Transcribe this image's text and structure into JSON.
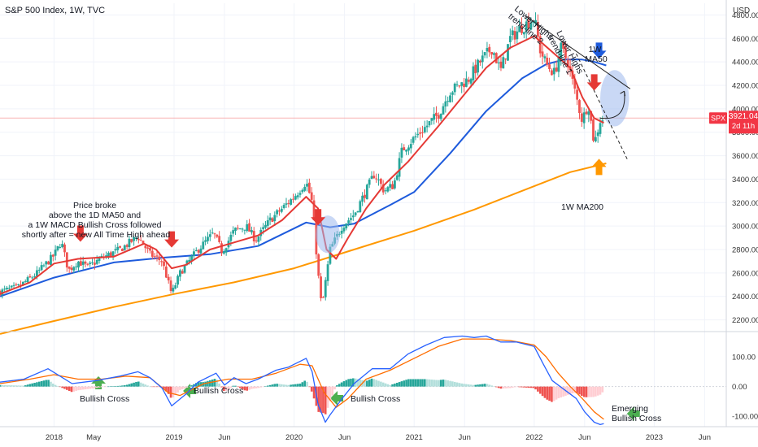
{
  "header": {
    "title": "S&P 500 Index, 1W, TVC"
  },
  "colors": {
    "up": "#26a69a",
    "down": "#ef5350",
    "ma20": "#e53935",
    "ma50": "#1e5bdc",
    "ma200": "#ff9800",
    "macd": "#2962ff",
    "signal": "#ff6d00",
    "green_arrow": "#4caf50",
    "price_line": "#f7a1a1",
    "price_badge": "#f23645",
    "ellipse": "#9cb8ec",
    "text": "#131722",
    "axis_text": "#333333"
  },
  "price_axis": {
    "unit": "USD",
    "min": 2100,
    "max": 4900
  },
  "macd_axis": {
    "min": -135,
    "max": 185
  },
  "chart_data": [
    {
      "name": "price",
      "type": "candlestick",
      "title": "S&P 500 Index, 1W, TVC",
      "x": {
        "min": 2017.55,
        "max": 2023.6,
        "tick_labels": [
          {
            "label": "2018",
            "t": 2018.0
          },
          {
            "label": "May",
            "t": 2018.33
          },
          {
            "label": "2019",
            "t": 2019.0
          },
          {
            "label": "Jun",
            "t": 2019.42
          },
          {
            "label": "2020",
            "t": 2020.0
          },
          {
            "label": "Jun",
            "t": 2020.42
          },
          {
            "label": "2021",
            "t": 2021.0
          },
          {
            "label": "Jun",
            "t": 2021.42
          },
          {
            "label": "2022",
            "t": 2022.0
          },
          {
            "label": "Jun",
            "t": 2022.42
          },
          {
            "label": "2023",
            "t": 2023.0
          },
          {
            "label": "Jun",
            "t": 2023.42
          }
        ]
      },
      "y": {
        "min": 2100,
        "max": 4900,
        "ticks": [
          2200,
          2400,
          2600,
          2800,
          3000,
          3200,
          3400,
          3600,
          3800,
          4000,
          4200,
          4400,
          4600,
          4800
        ]
      },
      "last_price": 3921.04,
      "countdown": "2d 11h",
      "symbol": "SPX",
      "anchors": [
        [
          2017.55,
          2440
        ],
        [
          2017.7,
          2480
        ],
        [
          2017.85,
          2590
        ],
        [
          2018.0,
          2750
        ],
        [
          2018.06,
          2870
        ],
        [
          2018.12,
          2620
        ],
        [
          2018.2,
          2700
        ],
        [
          2018.28,
          2650
        ],
        [
          2018.4,
          2730
        ],
        [
          2018.55,
          2800
        ],
        [
          2018.7,
          2910
        ],
        [
          2018.8,
          2760
        ],
        [
          2018.9,
          2700
        ],
        [
          2018.98,
          2420
        ],
        [
          2019.05,
          2600
        ],
        [
          2019.2,
          2800
        ],
        [
          2019.33,
          2940
        ],
        [
          2019.4,
          2780
        ],
        [
          2019.5,
          2960
        ],
        [
          2019.6,
          3000
        ],
        [
          2019.68,
          2880
        ],
        [
          2019.8,
          3050
        ],
        [
          2019.9,
          3150
        ],
        [
          2020.0,
          3250
        ],
        [
          2020.1,
          3380
        ],
        [
          2020.15,
          3200
        ],
        [
          2020.2,
          2600
        ],
        [
          2020.23,
          2300
        ],
        [
          2020.3,
          2800
        ],
        [
          2020.4,
          3000
        ],
        [
          2020.5,
          3100
        ],
        [
          2020.6,
          3300
        ],
        [
          2020.67,
          3450
        ],
        [
          2020.75,
          3300
        ],
        [
          2020.83,
          3350
        ],
        [
          2020.9,
          3650
        ],
        [
          2021.0,
          3750
        ],
        [
          2021.1,
          3850
        ],
        [
          2021.2,
          3950
        ],
        [
          2021.3,
          4150
        ],
        [
          2021.45,
          4250
        ],
        [
          2021.55,
          4400
        ],
        [
          2021.65,
          4520
        ],
        [
          2021.72,
          4320
        ],
        [
          2021.8,
          4600
        ],
        [
          2021.9,
          4700
        ],
        [
          2022.0,
          4770
        ],
        [
          2022.05,
          4500
        ],
        [
          2022.1,
          4380
        ],
        [
          2022.17,
          4300
        ],
        [
          2022.22,
          4520
        ],
        [
          2022.28,
          4400
        ],
        [
          2022.35,
          4100
        ],
        [
          2022.4,
          3900
        ],
        [
          2022.45,
          4050
        ],
        [
          2022.5,
          3700
        ],
        [
          2022.55,
          3900
        ],
        [
          2022.58,
          3921
        ]
      ],
      "series": [
        {
          "name": "1W MA50",
          "points": [
            [
              2017.55,
              2400
            ],
            [
              2018.0,
              2560
            ],
            [
              2018.5,
              2690
            ],
            [
              2018.9,
              2730
            ],
            [
              2019.3,
              2760
            ],
            [
              2019.7,
              2830
            ],
            [
              2020.1,
              3030
            ],
            [
              2020.3,
              2990
            ],
            [
              2020.5,
              3020
            ],
            [
              2020.8,
              3180
            ],
            [
              2021.0,
              3290
            ],
            [
              2021.3,
              3620
            ],
            [
              2021.6,
              3980
            ],
            [
              2021.9,
              4260
            ],
            [
              2022.1,
              4380
            ],
            [
              2022.25,
              4420
            ],
            [
              2022.4,
              4420
            ],
            [
              2022.5,
              4400
            ],
            [
              2022.6,
              4370
            ]
          ]
        },
        {
          "name": "1W MA200",
          "points": [
            [
              2017.55,
              2080
            ],
            [
              2018.0,
              2190
            ],
            [
              2018.5,
              2310
            ],
            [
              2019.0,
              2420
            ],
            [
              2019.5,
              2520
            ],
            [
              2020.0,
              2640
            ],
            [
              2020.5,
              2800
            ],
            [
              2021.0,
              2960
            ],
            [
              2021.5,
              3140
            ],
            [
              2022.0,
              3340
            ],
            [
              2022.3,
              3460
            ],
            [
              2022.6,
              3535
            ]
          ]
        },
        {
          "name": "1D MA50",
          "points": [
            [
              2017.55,
              2420
            ],
            [
              2017.8,
              2520
            ],
            [
              2018.0,
              2680
            ],
            [
              2018.2,
              2720
            ],
            [
              2018.5,
              2740
            ],
            [
              2018.75,
              2850
            ],
            [
              2018.85,
              2800
            ],
            [
              2018.98,
              2640
            ],
            [
              2019.1,
              2670
            ],
            [
              2019.3,
              2800
            ],
            [
              2019.5,
              2860
            ],
            [
              2019.7,
              2920
            ],
            [
              2019.9,
              3050
            ],
            [
              2020.1,
              3250
            ],
            [
              2020.2,
              3150
            ],
            [
              2020.27,
              2800
            ],
            [
              2020.35,
              2720
            ],
            [
              2020.45,
              2900
            ],
            [
              2020.6,
              3150
            ],
            [
              2020.75,
              3350
            ],
            [
              2020.95,
              3550
            ],
            [
              2021.2,
              3850
            ],
            [
              2021.4,
              4100
            ],
            [
              2021.6,
              4350
            ],
            [
              2021.8,
              4520
            ],
            [
              2022.0,
              4620
            ],
            [
              2022.1,
              4530
            ],
            [
              2022.2,
              4440
            ],
            [
              2022.3,
              4350
            ],
            [
              2022.4,
              4100
            ],
            [
              2022.5,
              3920
            ],
            [
              2022.58,
              3880
            ]
          ]
        }
      ],
      "trendlines": [
        {
          "name": "Lower Highs trend-line 2",
          "points": [
            [
              2021.93,
              4790
            ],
            [
              2022.8,
              4170
            ]
          ]
        },
        {
          "name": "Lower Highs trend-line 1",
          "points": [
            [
              2022.35,
              4470
            ],
            [
              2022.78,
              3560
            ]
          ]
        }
      ]
    },
    {
      "name": "macd",
      "type": "line",
      "y": {
        "min": -135,
        "max": 185,
        "ticks": [
          100,
          0,
          -100
        ],
        "tick_labels": [
          "100.00",
          "0.00",
          "-100.00"
        ]
      },
      "series": [
        {
          "name": "MACD",
          "points": [
            [
              2017.55,
              15
            ],
            [
              2017.75,
              25
            ],
            [
              2017.95,
              60
            ],
            [
              2018.05,
              35
            ],
            [
              2018.15,
              10
            ],
            [
              2018.35,
              20
            ],
            [
              2018.55,
              35
            ],
            [
              2018.7,
              50
            ],
            [
              2018.8,
              30
            ],
            [
              2018.9,
              -5
            ],
            [
              2018.98,
              -65
            ],
            [
              2019.1,
              -25
            ],
            [
              2019.2,
              15
            ],
            [
              2019.35,
              45
            ],
            [
              2019.42,
              5
            ],
            [
              2019.5,
              30
            ],
            [
              2019.6,
              10
            ],
            [
              2019.7,
              25
            ],
            [
              2019.85,
              55
            ],
            [
              2019.95,
              65
            ],
            [
              2020.1,
              95
            ],
            [
              2020.15,
              50
            ],
            [
              2020.2,
              -60
            ],
            [
              2020.26,
              -120
            ],
            [
              2020.3,
              -95
            ],
            [
              2020.4,
              -40
            ],
            [
              2020.5,
              10
            ],
            [
              2020.65,
              60
            ],
            [
              2020.8,
              60
            ],
            [
              2020.95,
              110
            ],
            [
              2021.1,
              140
            ],
            [
              2021.25,
              165
            ],
            [
              2021.4,
              170
            ],
            [
              2021.5,
              165
            ],
            [
              2021.6,
              170
            ],
            [
              2021.72,
              150
            ],
            [
              2021.85,
              150
            ],
            [
              2022.0,
              135
            ],
            [
              2022.07,
              80
            ],
            [
              2022.15,
              20
            ],
            [
              2022.25,
              -10
            ],
            [
              2022.35,
              -40
            ],
            [
              2022.42,
              -85
            ],
            [
              2022.5,
              -120
            ],
            [
              2022.55,
              -128
            ],
            [
              2022.58,
              -125
            ]
          ]
        },
        {
          "name": "Signal",
          "points": [
            [
              2017.55,
              10
            ],
            [
              2017.8,
              25
            ],
            [
              2018.0,
              40
            ],
            [
              2018.2,
              25
            ],
            [
              2018.4,
              25
            ],
            [
              2018.6,
              35
            ],
            [
              2018.8,
              30
            ],
            [
              2018.95,
              -20
            ],
            [
              2019.05,
              -30
            ],
            [
              2019.25,
              10
            ],
            [
              2019.45,
              25
            ],
            [
              2019.65,
              25
            ],
            [
              2019.85,
              45
            ],
            [
              2020.05,
              75
            ],
            [
              2020.15,
              70
            ],
            [
              2020.25,
              -20
            ],
            [
              2020.35,
              -70
            ],
            [
              2020.45,
              -40
            ],
            [
              2020.6,
              25
            ],
            [
              2020.8,
              55
            ],
            [
              2021.0,
              95
            ],
            [
              2021.2,
              135
            ],
            [
              2021.4,
              160
            ],
            [
              2021.6,
              160
            ],
            [
              2021.8,
              155
            ],
            [
              2022.0,
              140
            ],
            [
              2022.1,
              100
            ],
            [
              2022.2,
              45
            ],
            [
              2022.3,
              0
            ],
            [
              2022.4,
              -40
            ],
            [
              2022.5,
              -85
            ],
            [
              2022.58,
              -110
            ]
          ]
        }
      ]
    }
  ],
  "annotations": {
    "price_broke": [
      "Price broke",
      "above the 1D MA50 and",
      "a 1W MACD Bullish Cross followed",
      "shortly after = new All Time High ahead"
    ],
    "trendline2": [
      "Lower Highs",
      "trend-line 2"
    ],
    "trendline1": [
      "Lower Highs",
      "trend-line 1"
    ],
    "ma50": [
      "1W",
      "MA50"
    ],
    "ma200": "1W MA200",
    "bullish_cross": "Bullish Cross",
    "emerging": [
      "Emerging",
      "Bullish Cross"
    ]
  },
  "markers": {
    "red_arrows": [
      [
        2018.22,
        2880
      ],
      [
        2018.98,
        2830
      ],
      [
        2020.2,
        3020
      ],
      [
        2022.5,
        4170
      ]
    ],
    "green_arrows": [
      [
        2018.37,
        0
      ],
      [
        2018.98,
        0
      ],
      [
        2020.45,
        0
      ],
      [
        2022.65,
        0
      ]
    ],
    "blue_arrow": [
      2022.54,
      4440
    ],
    "orange_arrow": [
      2022.54,
      3560
    ],
    "ellipses": [
      {
        "cx": 2020.28,
        "cy": 2930,
        "rx": 0.1,
        "ry": 160
      },
      {
        "cx": 2022.67,
        "cy": 4090,
        "rx": 0.12,
        "ry": 240
      }
    ],
    "curve_arrow": [
      [
        2022.55,
        3920
      ],
      [
        2022.75,
        4150
      ]
    ]
  }
}
